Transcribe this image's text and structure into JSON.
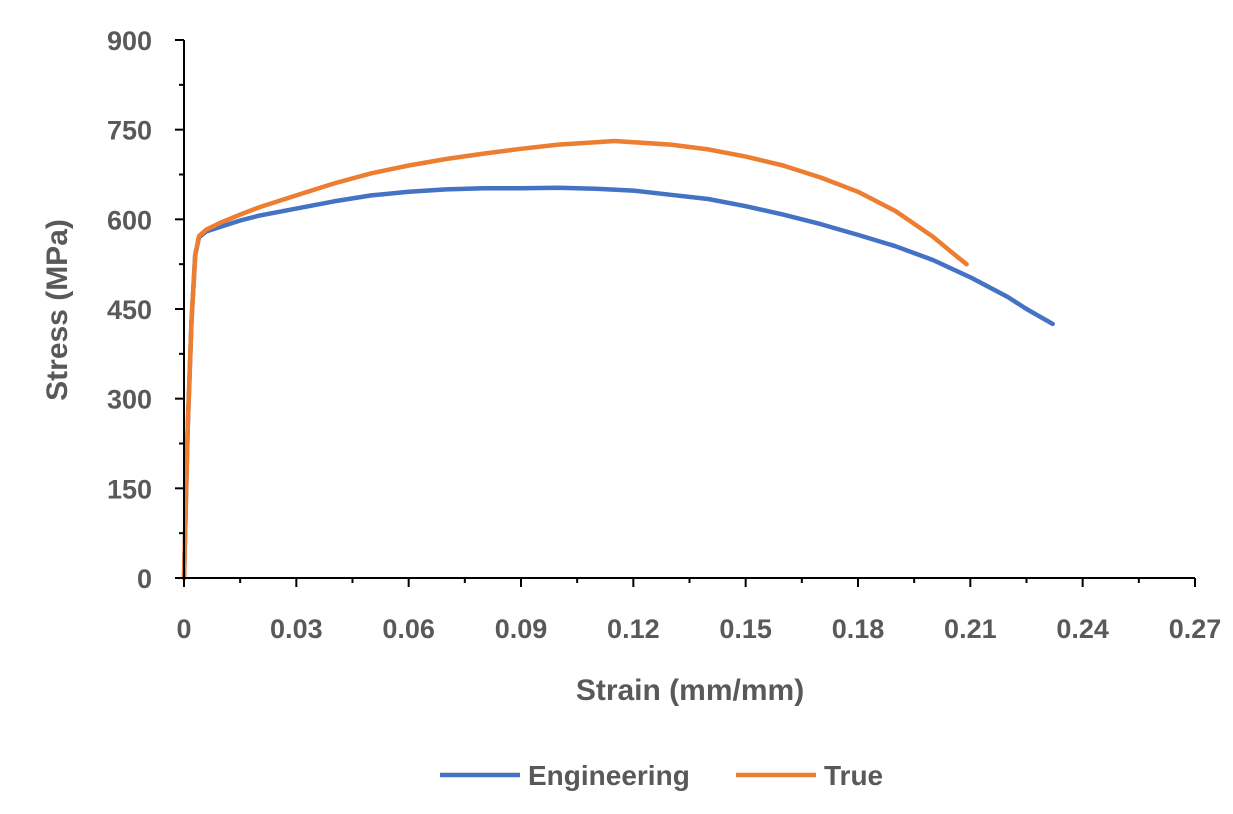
{
  "chart_data": {
    "type": "line",
    "xlabel": "Strain (mm/mm)",
    "ylabel": "Stress (MPa)",
    "xlim": [
      0,
      0.27
    ],
    "ylim": [
      0,
      900
    ],
    "xticks": [
      0,
      0.03,
      0.06,
      0.09,
      0.12,
      0.15,
      0.18,
      0.21,
      0.24,
      0.27
    ],
    "xtick_labels": [
      "0",
      "0.03",
      "0.06",
      "0.09",
      "0.12",
      "0.15",
      "0.18",
      "0.21",
      "0.24",
      "0.27"
    ],
    "yticks": [
      0,
      150,
      300,
      450,
      600,
      750,
      900
    ],
    "ytick_labels": [
      "0",
      "150",
      "300",
      "450",
      "600",
      "750",
      "900"
    ],
    "grid": false,
    "legend_position": "bottom",
    "axis_color": "#000000",
    "text_color": "#595959",
    "series": [
      {
        "name": "Engineering",
        "color": "#4472C4",
        "x": [
          0,
          0.001,
          0.002,
          0.003,
          0.004,
          0.006,
          0.01,
          0.015,
          0.02,
          0.03,
          0.04,
          0.05,
          0.06,
          0.07,
          0.08,
          0.09,
          0.1,
          0.11,
          0.12,
          0.13,
          0.14,
          0.15,
          0.16,
          0.17,
          0.18,
          0.19,
          0.2,
          0.21,
          0.22,
          0.225,
          0.232
        ],
        "y": [
          0,
          250,
          430,
          540,
          570,
          580,
          588,
          598,
          606,
          618,
          630,
          640,
          646,
          650,
          652,
          652,
          653,
          651,
          648,
          641,
          634,
          622,
          608,
          592,
          574,
          555,
          532,
          503,
          470,
          450,
          425
        ]
      },
      {
        "name": "True",
        "color": "#ED7D31",
        "x": [
          0,
          0.001,
          0.002,
          0.003,
          0.004,
          0.006,
          0.01,
          0.015,
          0.02,
          0.03,
          0.04,
          0.05,
          0.06,
          0.07,
          0.08,
          0.09,
          0.1,
          0.11,
          0.115,
          0.12,
          0.13,
          0.14,
          0.15,
          0.16,
          0.17,
          0.18,
          0.19,
          0.2,
          0.205,
          0.209
        ],
        "y": [
          0,
          250,
          430,
          540,
          572,
          583,
          595,
          608,
          620,
          640,
          660,
          677,
          690,
          701,
          710,
          718,
          725,
          729,
          731,
          729,
          725,
          717,
          705,
          690,
          670,
          646,
          614,
          571,
          545,
          525
        ]
      }
    ]
  }
}
